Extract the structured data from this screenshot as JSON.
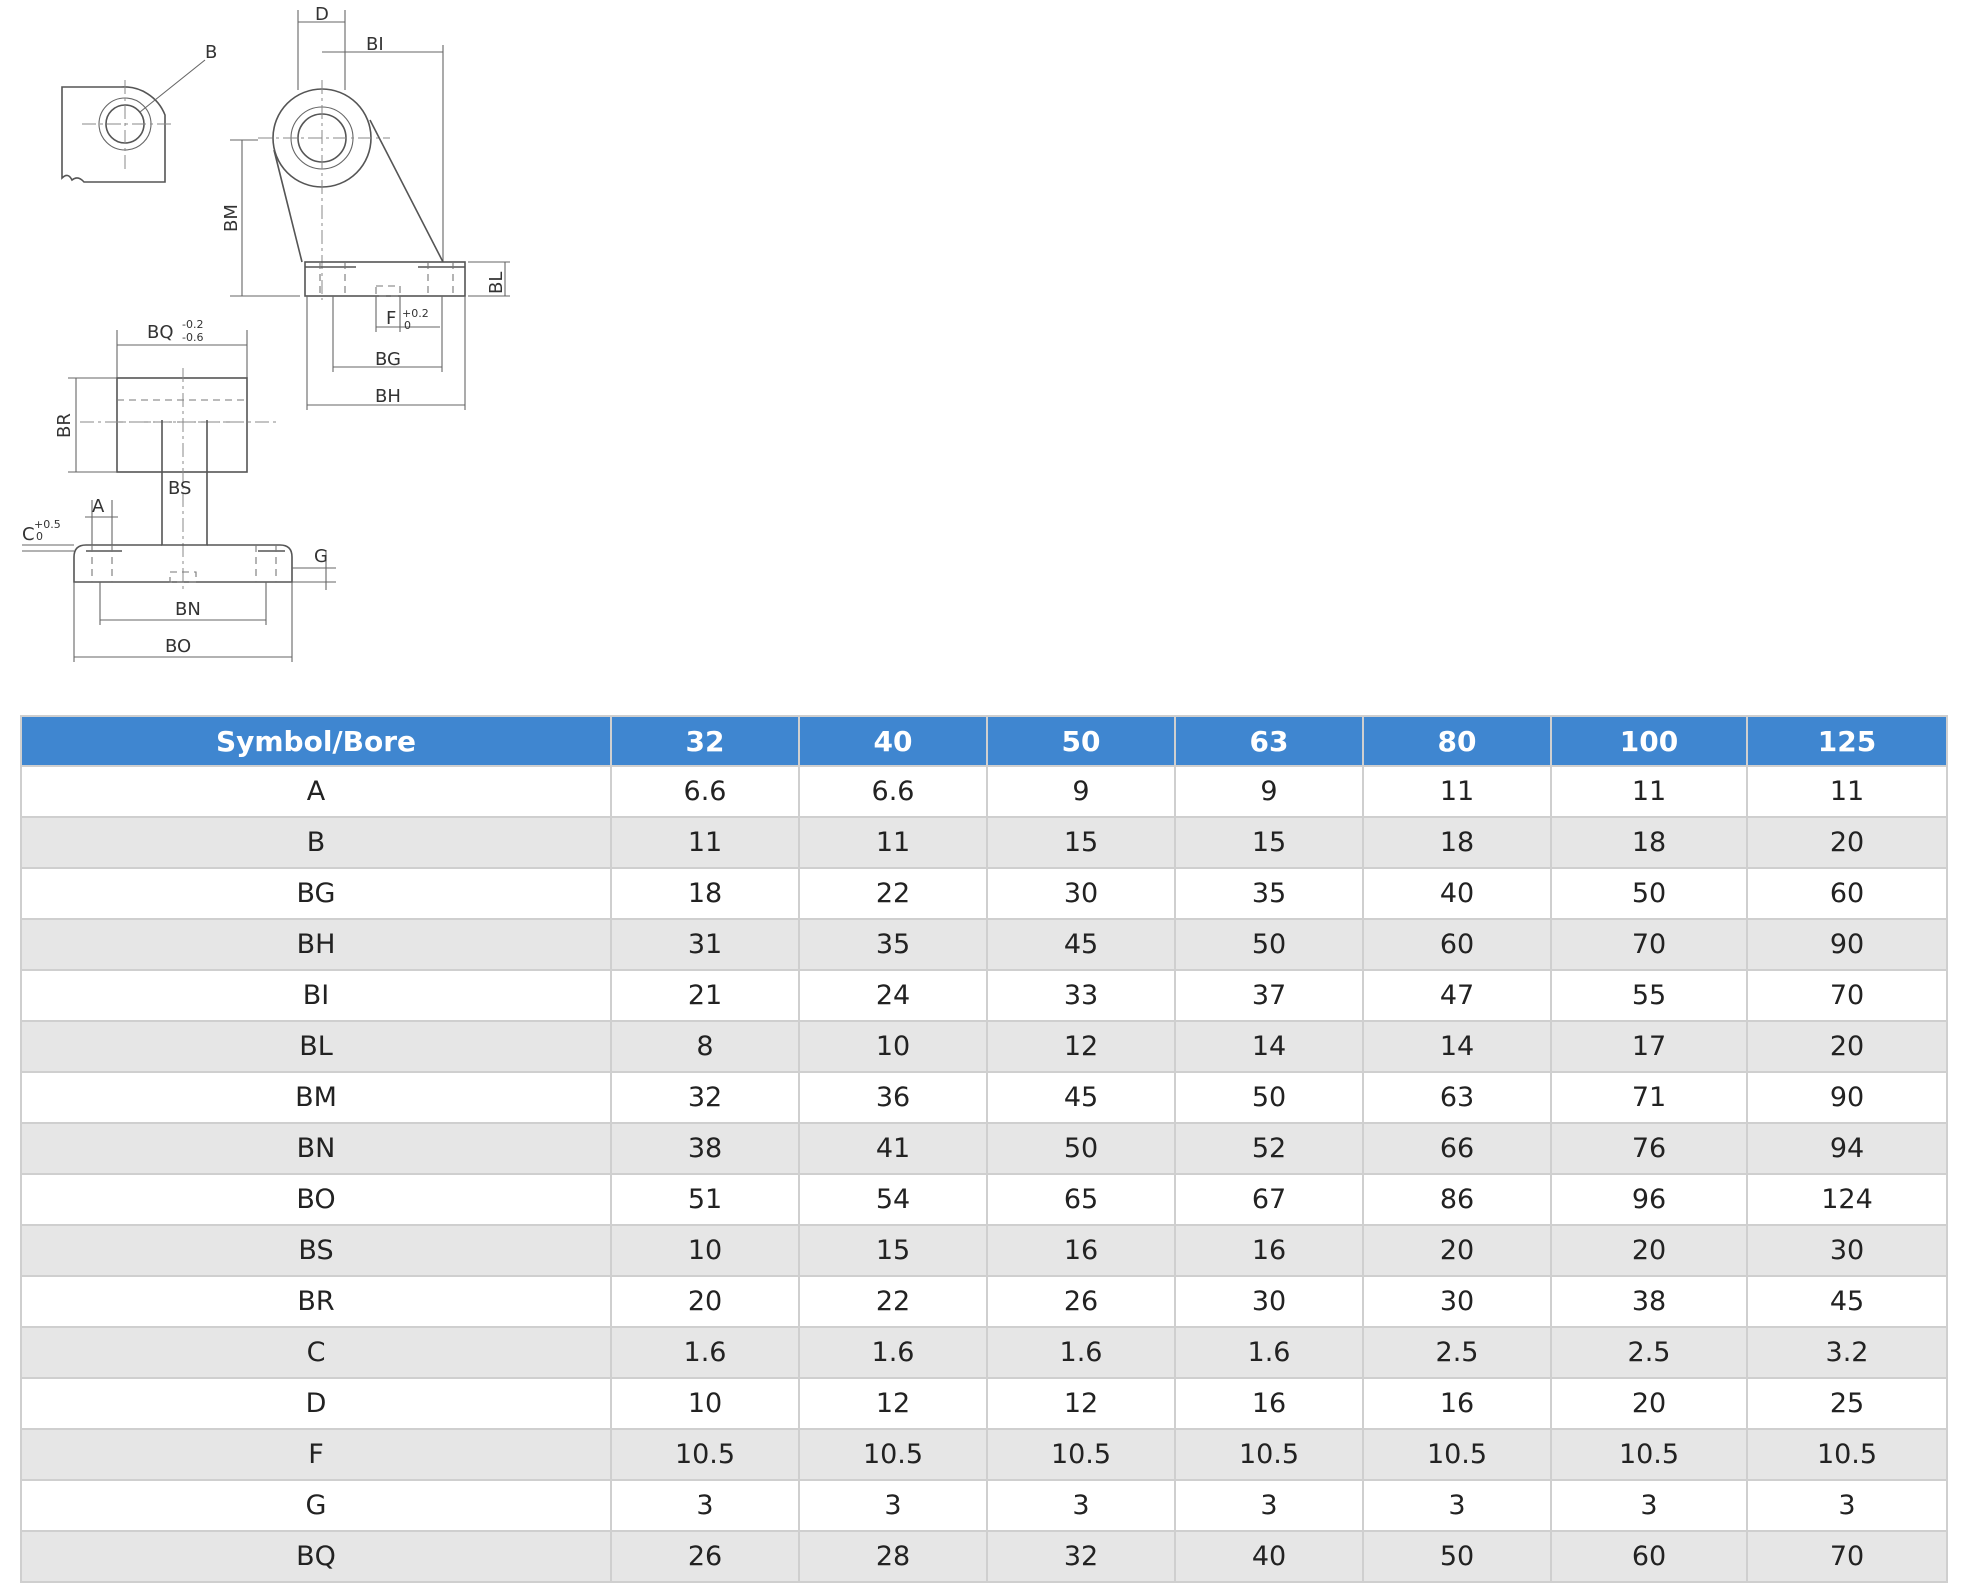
{
  "drawing_labels": {
    "D": "D",
    "BI": "BI",
    "B": "B",
    "BM": "BM",
    "BL": "BL",
    "F": "F",
    "F_tol_upper": "+0.2",
    "F_tol_lower": "0",
    "BG": "BG",
    "BH": "BH",
    "BQ": "BQ",
    "BQ_tol_upper": "-0.2",
    "BQ_tol_lower": "-0.6",
    "BR": "BR",
    "BS": "BS",
    "A": "A",
    "C": "C",
    "C_tol_upper": "+0.5",
    "C_tol_lower": "0",
    "G": "G",
    "BN": "BN",
    "BO": "BO"
  },
  "table": {
    "headers": [
      "Symbol/Bore",
      "32",
      "40",
      "50",
      "63",
      "80",
      "100",
      "125"
    ],
    "rows": [
      [
        "A",
        "6.6",
        "6.6",
        "9",
        "9",
        "11",
        "11",
        "11"
      ],
      [
        "B",
        "11",
        "11",
        "15",
        "15",
        "18",
        "18",
        "20"
      ],
      [
        "BG",
        "18",
        "22",
        "30",
        "35",
        "40",
        "50",
        "60"
      ],
      [
        "BH",
        "31",
        "35",
        "45",
        "50",
        "60",
        "70",
        "90"
      ],
      [
        "BI",
        "21",
        "24",
        "33",
        "37",
        "47",
        "55",
        "70"
      ],
      [
        "BL",
        "8",
        "10",
        "12",
        "14",
        "14",
        "17",
        "20"
      ],
      [
        "BM",
        "32",
        "36",
        "45",
        "50",
        "63",
        "71",
        "90"
      ],
      [
        "BN",
        "38",
        "41",
        "50",
        "52",
        "66",
        "76",
        "94"
      ],
      [
        "BO",
        "51",
        "54",
        "65",
        "67",
        "86",
        "96",
        "124"
      ],
      [
        "BS",
        "10",
        "15",
        "16",
        "16",
        "20",
        "20",
        "30"
      ],
      [
        "BR",
        "20",
        "22",
        "26",
        "30",
        "30",
        "38",
        "45"
      ],
      [
        "C",
        "1.6",
        "1.6",
        "1.6",
        "1.6",
        "2.5",
        "2.5",
        "3.2"
      ],
      [
        "D",
        "10",
        "12",
        "12",
        "16",
        "16",
        "20",
        "25"
      ],
      [
        "F",
        "10.5",
        "10.5",
        "10.5",
        "10.5",
        "10.5",
        "10.5",
        "10.5"
      ],
      [
        "G",
        "3",
        "3",
        "3",
        "3",
        "3",
        "3",
        "3"
      ],
      [
        "BQ",
        "26",
        "28",
        "32",
        "40",
        "50",
        "60",
        "70"
      ]
    ]
  }
}
